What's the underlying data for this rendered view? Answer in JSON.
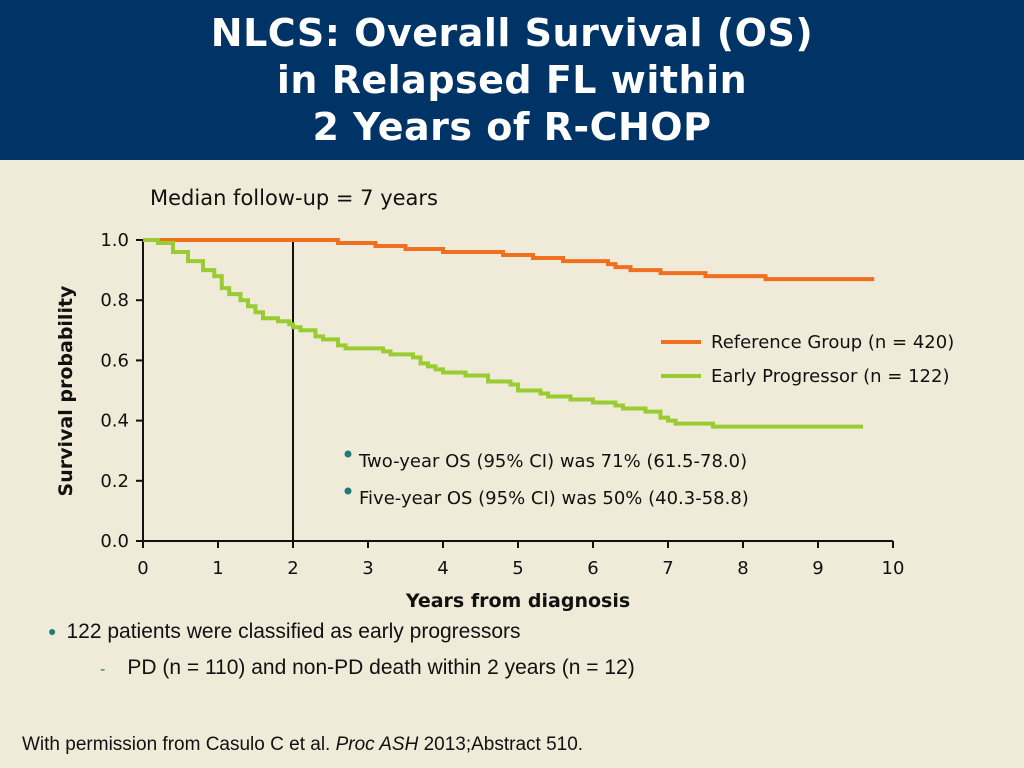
{
  "slide": {
    "title_lines": [
      "NLCS: Overall Survival (OS)",
      "in Relapsed FL within",
      "2 Years of R-CHOP"
    ],
    "bullets": [
      "122 patients were classified as early progressors",
      "PD (n = 110) and non-PD death within 2 years (n = 12)"
    ],
    "citation": {
      "prefix": "With permission from Casulo C et al. ",
      "journal": "Proc ASH",
      "suffix": " 2013;Abstract 510."
    },
    "colors": {
      "title_bg": "#003366",
      "background": "#efebd8",
      "bullet_accent": "#1f7a7a"
    }
  },
  "chart_data": {
    "type": "line",
    "note": "Median follow-up = 7 years",
    "xlabel": "Years from diagnosis",
    "ylabel": "Survival probability",
    "xlim": [
      0,
      10
    ],
    "ylim": [
      0,
      1.0
    ],
    "x_ticks": [
      "0",
      "1",
      "2",
      "3",
      "4",
      "5",
      "6",
      "7",
      "8",
      "9",
      "10"
    ],
    "y_ticks": [
      "0.0",
      "0.2",
      "0.4",
      "0.6",
      "0.8",
      "1.0"
    ],
    "reference_line_x": 2,
    "legend_position": "right",
    "series": [
      {
        "name": "Reference Group (n = 420)",
        "color": "#f07020",
        "points": [
          [
            0,
            1.0
          ],
          [
            2.4,
            1.0
          ],
          [
            2.6,
            0.99
          ],
          [
            3.1,
            0.98
          ],
          [
            3.4,
            0.98
          ],
          [
            3.5,
            0.97
          ],
          [
            3.7,
            0.97
          ],
          [
            4.0,
            0.96
          ],
          [
            4.7,
            0.96
          ],
          [
            4.8,
            0.95
          ],
          [
            5.1,
            0.95
          ],
          [
            5.2,
            0.94
          ],
          [
            5.5,
            0.94
          ],
          [
            5.6,
            0.93
          ],
          [
            6.0,
            0.93
          ],
          [
            6.2,
            0.92
          ],
          [
            6.3,
            0.91
          ],
          [
            6.5,
            0.9
          ],
          [
            6.6,
            0.9
          ],
          [
            6.9,
            0.89
          ],
          [
            7.0,
            0.89
          ],
          [
            7.5,
            0.89
          ],
          [
            7.5,
            0.88
          ],
          [
            8.2,
            0.88
          ],
          [
            8.3,
            0.87
          ],
          [
            9.75,
            0.87
          ]
        ]
      },
      {
        "name": "Early Progressor (n = 122)",
        "color": "#99cc33",
        "points": [
          [
            0,
            1.0
          ],
          [
            0.2,
            0.99
          ],
          [
            0.4,
            0.96
          ],
          [
            0.6,
            0.93
          ],
          [
            0.8,
            0.9
          ],
          [
            0.95,
            0.88
          ],
          [
            1.05,
            0.84
          ],
          [
            1.15,
            0.82
          ],
          [
            1.3,
            0.8
          ],
          [
            1.4,
            0.78
          ],
          [
            1.5,
            0.76
          ],
          [
            1.6,
            0.74
          ],
          [
            1.8,
            0.73
          ],
          [
            1.95,
            0.72
          ],
          [
            2.0,
            0.71
          ],
          [
            2.1,
            0.7
          ],
          [
            2.3,
            0.68
          ],
          [
            2.4,
            0.67
          ],
          [
            2.6,
            0.65
          ],
          [
            2.7,
            0.64
          ],
          [
            3.0,
            0.64
          ],
          [
            3.2,
            0.63
          ],
          [
            3.3,
            0.62
          ],
          [
            3.5,
            0.62
          ],
          [
            3.6,
            0.61
          ],
          [
            3.7,
            0.59
          ],
          [
            3.8,
            0.58
          ],
          [
            3.9,
            0.57
          ],
          [
            4.0,
            0.56
          ],
          [
            4.2,
            0.56
          ],
          [
            4.3,
            0.55
          ],
          [
            4.6,
            0.53
          ],
          [
            4.7,
            0.53
          ],
          [
            4.9,
            0.52
          ],
          [
            5.0,
            0.5
          ],
          [
            5.2,
            0.5
          ],
          [
            5.3,
            0.49
          ],
          [
            5.4,
            0.48
          ],
          [
            5.6,
            0.48
          ],
          [
            5.7,
            0.47
          ],
          [
            5.8,
            0.47
          ],
          [
            6.0,
            0.46
          ],
          [
            6.2,
            0.46
          ],
          [
            6.3,
            0.45
          ],
          [
            6.4,
            0.44
          ],
          [
            6.6,
            0.44
          ],
          [
            6.7,
            0.43
          ],
          [
            6.8,
            0.43
          ],
          [
            6.9,
            0.41
          ],
          [
            7.0,
            0.4
          ],
          [
            7.1,
            0.39
          ],
          [
            7.5,
            0.39
          ],
          [
            7.6,
            0.38
          ],
          [
            8.5,
            0.38
          ],
          [
            9.6,
            0.38
          ]
        ]
      }
    ],
    "annotations": [
      "Two-year OS (95% CI) was 71% (61.5-78.0)",
      "Five-year OS (95% CI) was 50% (40.3-58.8)"
    ]
  }
}
